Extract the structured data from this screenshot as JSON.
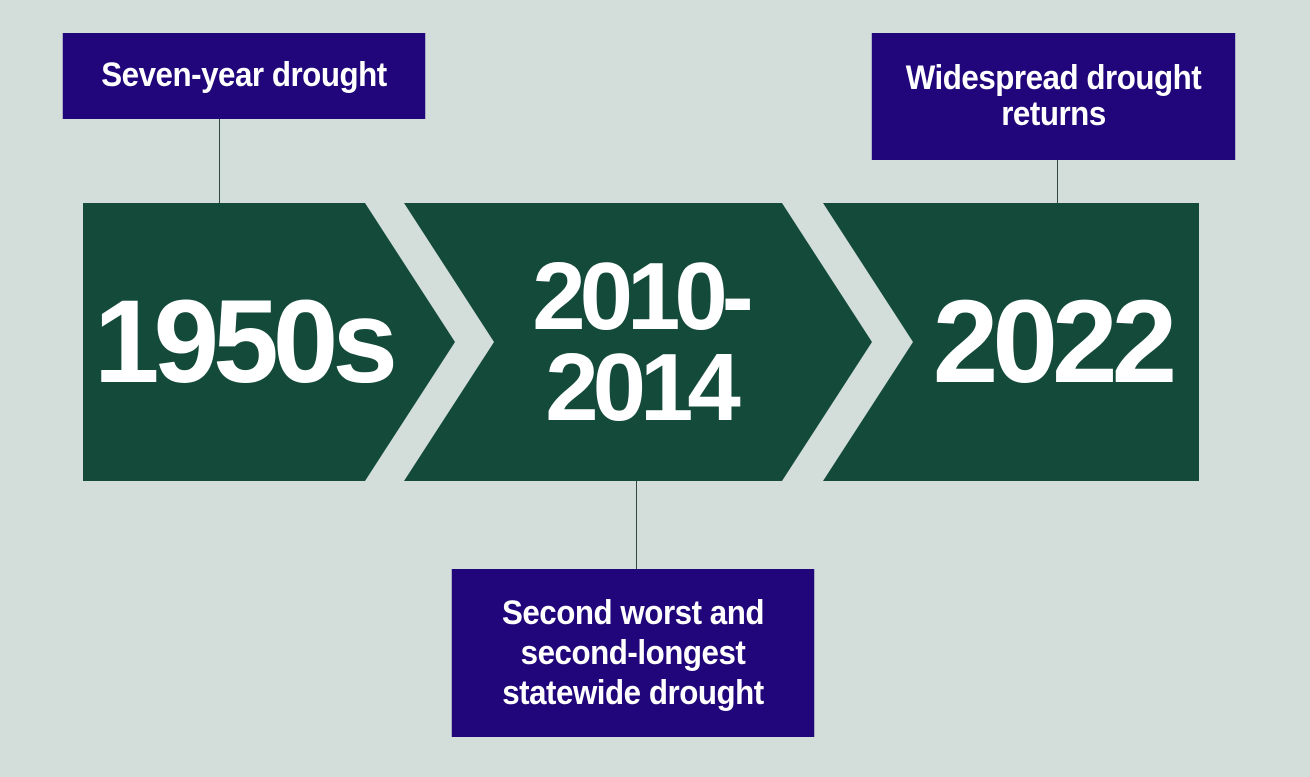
{
  "timeline": {
    "periods": [
      {
        "label": "1950s",
        "event": "Seven-year drought"
      },
      {
        "label": "2010-\n2014",
        "event": "Second worst and\nsecond-longest\nstatewide drought"
      },
      {
        "label": "2022",
        "event": "Widespread drought\nreturns"
      }
    ]
  },
  "colors": {
    "background": "#d3dedb",
    "chevron": "#134a39",
    "event_box": "#20067a",
    "text": "#ffffff",
    "connector": "#2e4a3c"
  }
}
